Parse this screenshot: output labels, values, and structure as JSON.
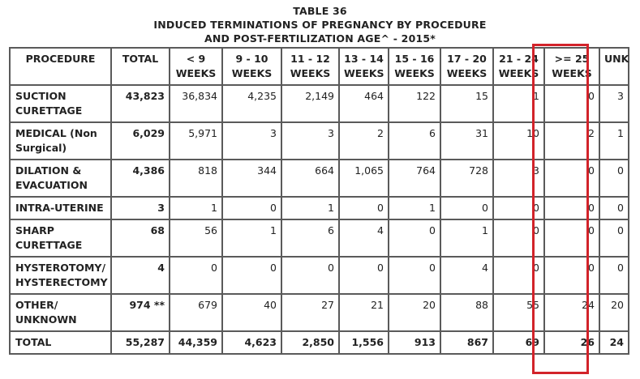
{
  "title": {
    "line1": "TABLE 36",
    "line2": "INDUCED TERMINATIONS OF PREGNANCY BY PROCEDURE",
    "line3": "AND POST-FERTILIZATION AGE^ - 2015*"
  },
  "colors": {
    "border": "#5a5a5a",
    "highlight": "#d2232a",
    "text": "#222222"
  },
  "columns": [
    "PROCEDURE",
    "TOTAL",
    "< 9 WEEKS",
    "9 - 10 WEEKS",
    "11 - 12 WEEKS",
    "13 - 14 WEEKS",
    "15 - 16 WEEKS",
    "17 - 20 WEEKS",
    "21 - 24 WEEKS",
    ">= 25 WEEKS",
    "UNK"
  ],
  "rows": [
    {
      "procedure": "SUCTION CURETTAGE",
      "total": "43,823",
      "values": [
        "36,834",
        "4,235",
        "2,149",
        "464",
        "122",
        "15",
        "1",
        "0",
        "3"
      ]
    },
    {
      "procedure": "MEDICAL (Non Surgical)",
      "total": "6,029",
      "values": [
        "5,971",
        "3",
        "3",
        "2",
        "6",
        "31",
        "10",
        "2",
        "1"
      ]
    },
    {
      "procedure": "DILATION & EVACUATION",
      "total": "4,386",
      "values": [
        "818",
        "344",
        "664",
        "1,065",
        "764",
        "728",
        "3",
        "0",
        "0"
      ]
    },
    {
      "procedure": "INTRA-UTERINE",
      "total": "3",
      "values": [
        "1",
        "0",
        "1",
        "0",
        "1",
        "0",
        "0",
        "0",
        "0"
      ]
    },
    {
      "procedure": "SHARP CURETTAGE",
      "total": "68",
      "values": [
        "56",
        "1",
        "6",
        "4",
        "0",
        "1",
        "0",
        "0",
        "0"
      ]
    },
    {
      "procedure": "HYSTEROTOMY/ HYSTERECTOMY",
      "total": "4",
      "values": [
        "0",
        "0",
        "0",
        "0",
        "0",
        "4",
        "0",
        "0",
        "0"
      ]
    },
    {
      "procedure": "OTHER/ UNKNOWN",
      "total": "974 **",
      "values": [
        "679",
        "40",
        "27",
        "21",
        "20",
        "88",
        "55",
        "24",
        "20"
      ]
    }
  ],
  "total_row": {
    "label": "TOTAL",
    "total": "55,287",
    "values": [
      "44,359",
      "4,623",
      "2,850",
      "1,556",
      "913",
      "867",
      "69",
      "26",
      "24"
    ]
  }
}
